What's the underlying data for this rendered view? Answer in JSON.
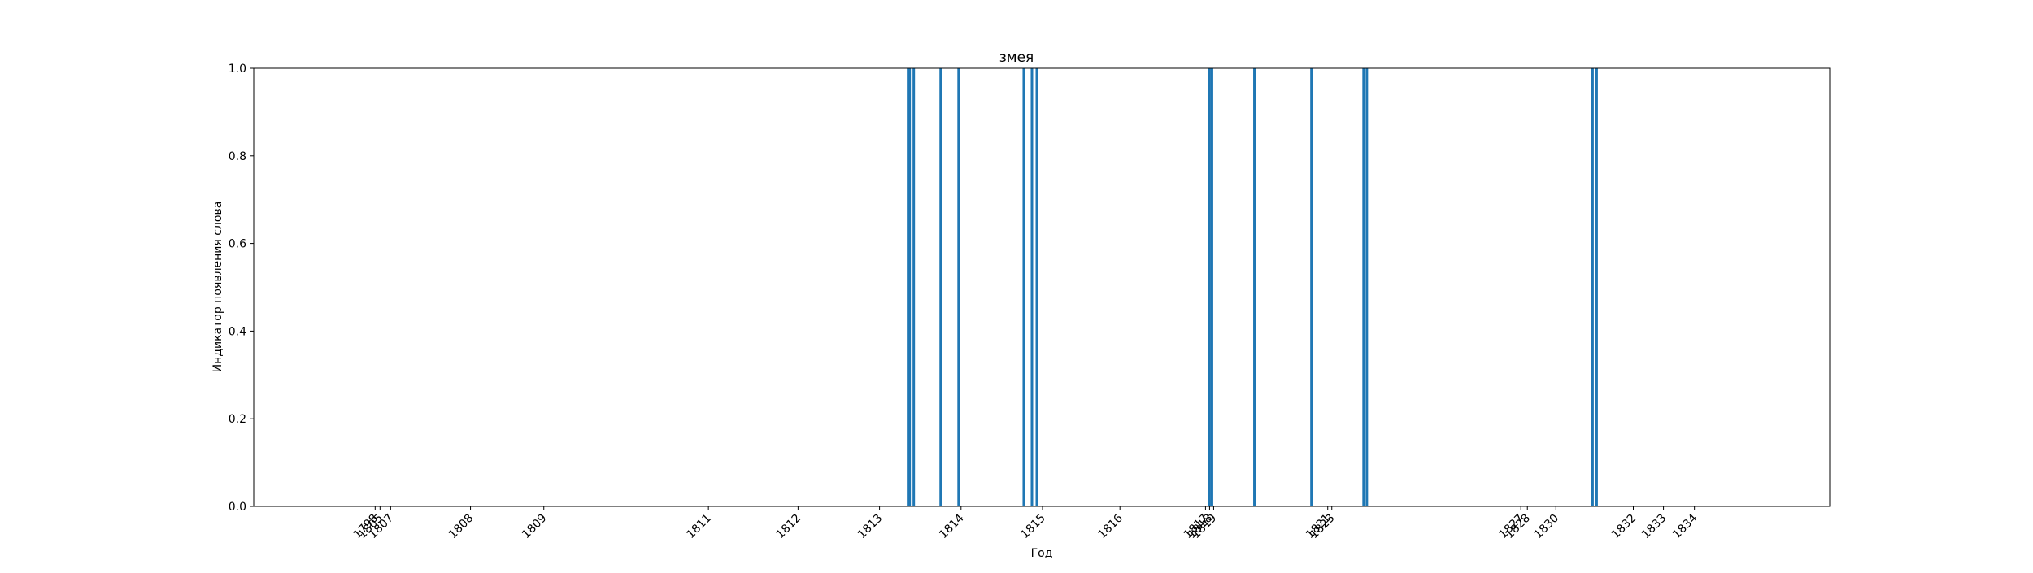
{
  "chart_data": {
    "type": "bar",
    "title": "змея",
    "xlabel": "Год",
    "ylabel": "Индикатор появления слова",
    "ylim": [
      0,
      1.0
    ],
    "y_ticks": [
      "0.0",
      "0.2",
      "0.4",
      "0.6",
      "0.8",
      "1.0"
    ],
    "grid": false,
    "x_ticks": [
      {
        "label": "1798",
        "x": 1806.81
      },
      {
        "label": "1805",
        "x": 1806.87
      },
      {
        "label": "1807",
        "x": 1807.0
      },
      {
        "label": "1808",
        "x": 1807.98
      },
      {
        "label": "1809",
        "x": 1808.88
      },
      {
        "label": "1811",
        "x": 1810.9
      },
      {
        "label": "1812",
        "x": 1812.0
      },
      {
        "label": "1813",
        "x": 1813.0
      },
      {
        "label": "1814",
        "x": 1814.0
      },
      {
        "label": "1815",
        "x": 1815.0
      },
      {
        "label": "1816",
        "x": 1815.95
      },
      {
        "label": "1817",
        "x": 1817.0
      },
      {
        "label": "1818",
        "x": 1817.05
      },
      {
        "label": "1819",
        "x": 1817.1
      },
      {
        "label": "1821",
        "x": 1818.5
      },
      {
        "label": "1823",
        "x": 1818.55
      },
      {
        "label": "1827",
        "x": 1820.87
      },
      {
        "label": "1828",
        "x": 1820.95
      },
      {
        "label": "1830",
        "x": 1821.3
      },
      {
        "label": "1832",
        "x": 1822.25
      },
      {
        "label": "1833",
        "x": 1822.62
      },
      {
        "label": "1834",
        "x": 1823.0
      }
    ],
    "bars": [
      {
        "x": 1813.35,
        "value": 1
      },
      {
        "x": 1813.37,
        "value": 1
      },
      {
        "x": 1813.42,
        "value": 1
      },
      {
        "x": 1813.75,
        "value": 1
      },
      {
        "x": 1813.97,
        "value": 1
      },
      {
        "x": 1814.77,
        "value": 1
      },
      {
        "x": 1814.87,
        "value": 1
      },
      {
        "x": 1814.93,
        "value": 1
      },
      {
        "x": 1817.05,
        "value": 1
      },
      {
        "x": 1817.08,
        "value": 1
      },
      {
        "x": 1817.6,
        "value": 1
      },
      {
        "x": 1818.3,
        "value": 1
      },
      {
        "x": 1818.94,
        "value": 1
      },
      {
        "x": 1818.98,
        "value": 1
      },
      {
        "x": 1821.75,
        "value": 1
      },
      {
        "x": 1821.8,
        "value": 1
      }
    ],
    "bar_color": "#1f77b4"
  }
}
